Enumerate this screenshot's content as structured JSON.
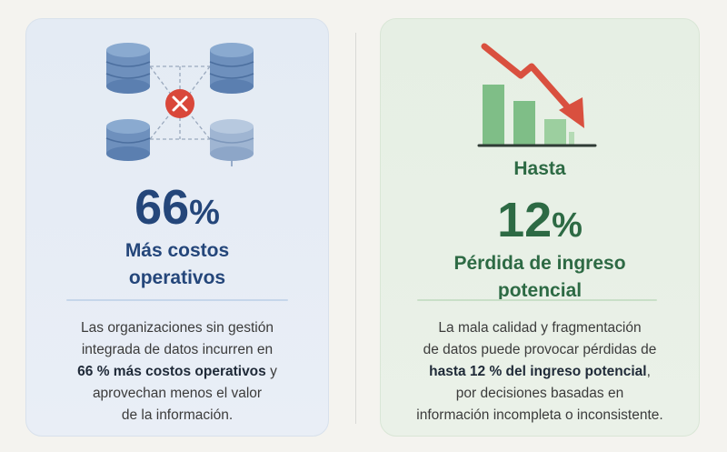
{
  "left_card": {
    "icon": "database-network-error-icon",
    "stat_number": "66",
    "stat_unit": "%",
    "title_line1": "Más costos",
    "title_line2": "operativos",
    "body_line1": "Las organizaciones sin gestión",
    "body_line2": "integrada de datos incurren en",
    "body_line3_bold": "66 % más costos operativos",
    "body_line3_rest": " y",
    "body_line4": "aprovechan menos el valor",
    "body_line5": "de la información.",
    "accent_color": "#24467a"
  },
  "right_card": {
    "icon": "declining-bar-chart-icon",
    "prefix": "Hasta",
    "stat_number": "12",
    "stat_unit": "%",
    "title_line1": "Pérdida de ingreso",
    "title_line2": "potencial",
    "body_line1": "La mala calidad y fragmentación",
    "body_line2": "de datos puede provocar pérdidas de",
    "body_line3_bold": "hasta 12 % del ingreso potencial",
    "body_line3_rest": ",",
    "body_line4": "por decisiones basadas en",
    "body_line5": "información incompleta o inconsistente.",
    "accent_color": "#2d6a44",
    "arrow_color": "#d9503f"
  }
}
